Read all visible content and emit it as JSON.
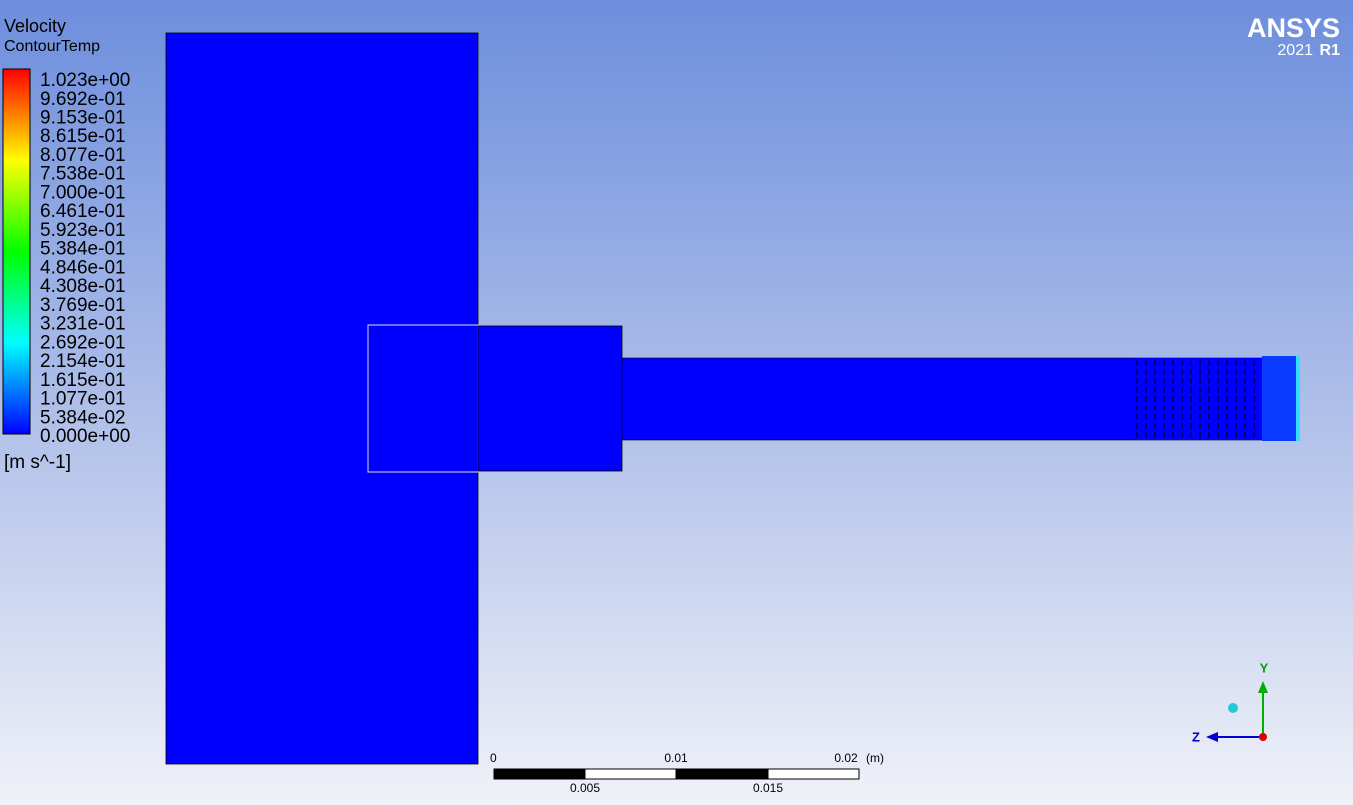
{
  "legend": {
    "variable": "Velocity",
    "name": "ContourTemp",
    "labels": [
      "1.023e+00",
      "9.692e-01",
      "9.153e-01",
      "8.615e-01",
      "8.077e-01",
      "7.538e-01",
      "7.000e-01",
      "6.461e-01",
      "5.923e-01",
      "5.384e-01",
      "4.846e-01",
      "4.308e-01",
      "3.769e-01",
      "3.231e-01",
      "2.692e-01",
      "2.154e-01",
      "1.615e-01",
      "1.077e-01",
      "5.384e-02",
      "0.000e+00"
    ],
    "unit": "[m s^-1]"
  },
  "logo": {
    "brand": "ANSYS",
    "year": "2021",
    "release": "R1"
  },
  "scale": {
    "top": [
      "0",
      "0.01",
      "0.02"
    ],
    "unit": "(m)",
    "bottom": [
      "0.005",
      "0.015"
    ]
  },
  "triad": {
    "y": "Y",
    "z": "Z"
  }
}
